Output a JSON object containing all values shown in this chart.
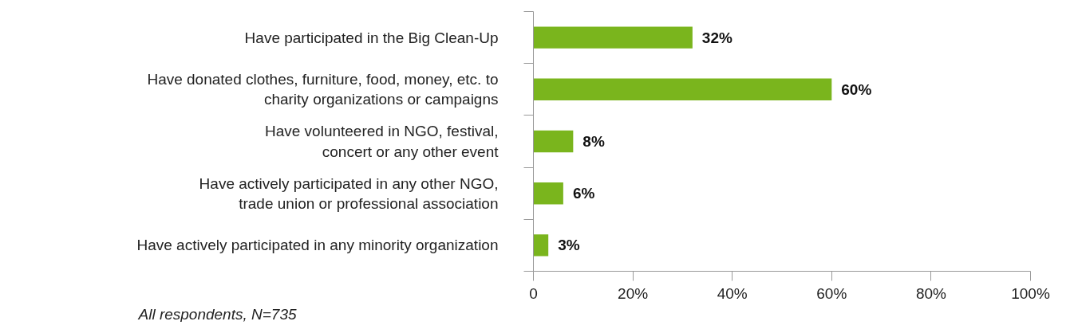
{
  "chart_data": {
    "type": "bar",
    "orientation": "horizontal",
    "categories": [
      "Have participated in the Big Clean-Up",
      "Have donated clothes, furniture, food, money, etc. to\ncharity organizations or campaigns",
      "Have volunteered in NGO, festival,\nconcert or any other event",
      "Have actively participated in any other NGO,\ntrade union or professional association",
      "Have actively participated in any minority organization"
    ],
    "values": [
      32,
      60,
      8,
      6,
      3
    ],
    "value_labels": [
      "32%",
      "60%",
      "8%",
      "6%",
      "3%"
    ],
    "color": "#7ab51d",
    "xlim": [
      0,
      100
    ],
    "xticks": [
      0,
      {
        "value": 20,
        "label": "20%"
      },
      {
        "value": 40,
        "label": "40%"
      },
      {
        "value": 60,
        "label": "60%"
      },
      {
        "value": 80,
        "label": "80%"
      },
      {
        "value": 100,
        "label": "100%"
      }
    ],
    "grid": false,
    "annotations": [
      "All respondents, N=735"
    ]
  }
}
